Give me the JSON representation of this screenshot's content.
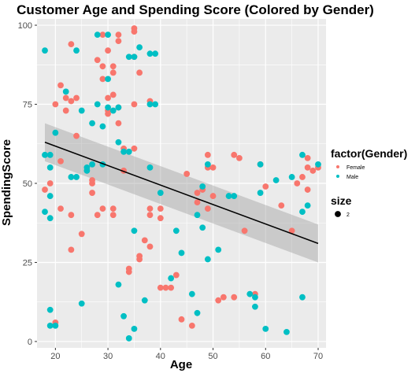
{
  "chart_data": {
    "type": "scatter",
    "title": "Customer Age and Spending Score (Colored by Gender)",
    "xlabel": "Age",
    "ylabel": "SpendingScore",
    "xlim": [
      16.5,
      71.5
    ],
    "ylim": [
      -2,
      102
    ],
    "xticks": [
      20,
      30,
      40,
      50,
      60,
      70
    ],
    "yticks": [
      0,
      25,
      50,
      75,
      100
    ],
    "grid": true,
    "legend_position": "right",
    "colors": {
      "panel": "#ebebeb",
      "grid": "#ffffff",
      "Female": "#f8766d",
      "Male": "#00bfc4",
      "ribbon": "#999999",
      "trend": "#000000"
    },
    "legend": {
      "color_title": "factor(Gender)",
      "entries": [
        {
          "label": "Female",
          "color": "#f8766d"
        },
        {
          "label": "Male",
          "color": "#00bfc4"
        }
      ],
      "size_title": "size",
      "size_entries": [
        {
          "label": "2"
        }
      ]
    },
    "trend": {
      "method": "linear",
      "x": [
        18,
        70
      ],
      "y": [
        63,
        31
      ],
      "ci_lower": [
        57,
        25
      ],
      "ci_upper": [
        69,
        37
      ]
    },
    "series": [
      {
        "name": "Female",
        "color": "#f8766d",
        "points": [
          [
            18,
            48
          ],
          [
            19,
            50
          ],
          [
            20,
            75
          ],
          [
            20,
            6
          ],
          [
            21,
            81
          ],
          [
            21,
            42
          ],
          [
            21,
            57
          ],
          [
            22,
            77
          ],
          [
            22,
            73
          ],
          [
            23,
            94
          ],
          [
            23,
            76
          ],
          [
            23,
            40
          ],
          [
            23,
            29
          ],
          [
            24,
            77
          ],
          [
            24,
            65
          ],
          [
            25,
            34
          ],
          [
            27,
            51
          ],
          [
            27,
            50
          ],
          [
            27,
            47
          ],
          [
            28,
            89
          ],
          [
            28,
            40
          ],
          [
            29,
            87
          ],
          [
            29,
            97
          ],
          [
            29,
            83
          ],
          [
            29,
            42
          ],
          [
            30,
            92
          ],
          [
            30,
            77
          ],
          [
            30,
            72
          ],
          [
            30,
            73
          ],
          [
            31,
            87
          ],
          [
            31,
            85
          ],
          [
            31,
            78
          ],
          [
            31,
            42
          ],
          [
            31,
            40
          ],
          [
            32,
            95
          ],
          [
            32,
            97
          ],
          [
            32,
            74
          ],
          [
            32,
            69
          ],
          [
            33,
            61
          ],
          [
            33,
            54
          ],
          [
            34,
            22
          ],
          [
            34,
            23
          ],
          [
            35,
            99
          ],
          [
            35,
            98
          ],
          [
            35,
            90
          ],
          [
            35,
            75
          ],
          [
            35,
            61
          ],
          [
            36,
            85
          ],
          [
            36,
            27
          ],
          [
            36,
            26
          ],
          [
            37,
            32
          ],
          [
            38,
            76
          ],
          [
            38,
            42
          ],
          [
            38,
            40
          ],
          [
            38,
            30
          ],
          [
            40,
            42
          ],
          [
            40,
            39
          ],
          [
            40,
            17
          ],
          [
            41,
            17
          ],
          [
            42,
            17
          ],
          [
            43,
            21
          ],
          [
            44,
            7
          ],
          [
            45,
            53
          ],
          [
            46,
            5
          ],
          [
            47,
            44
          ],
          [
            47,
            47
          ],
          [
            48,
            48
          ],
          [
            49,
            59
          ],
          [
            49,
            55
          ],
          [
            49,
            42
          ],
          [
            50,
            46
          ],
          [
            50,
            55
          ],
          [
            51,
            13
          ],
          [
            52,
            14
          ],
          [
            54,
            59
          ],
          [
            54,
            14
          ],
          [
            55,
            58
          ],
          [
            56,
            35
          ],
          [
            58,
            15
          ],
          [
            59,
            56
          ],
          [
            60,
            49
          ],
          [
            63,
            43
          ],
          [
            65,
            35
          ],
          [
            66,
            50
          ],
          [
            67,
            52
          ],
          [
            68,
            58
          ],
          [
            68,
            55
          ],
          [
            68,
            48
          ],
          [
            69,
            54
          ],
          [
            70,
            55
          ]
        ]
      },
      {
        "name": "Male",
        "color": "#00bfc4",
        "points": [
          [
            18,
            92
          ],
          [
            18,
            59
          ],
          [
            18,
            41
          ],
          [
            19,
            59
          ],
          [
            19,
            55
          ],
          [
            19,
            46
          ],
          [
            19,
            39
          ],
          [
            19,
            10
          ],
          [
            19,
            5
          ],
          [
            20,
            66
          ],
          [
            20,
            5
          ],
          [
            22,
            79
          ],
          [
            23,
            52
          ],
          [
            24,
            92
          ],
          [
            24,
            52
          ],
          [
            25,
            73
          ],
          [
            25,
            12
          ],
          [
            26,
            54
          ],
          [
            26,
            55
          ],
          [
            27,
            69
          ],
          [
            27,
            56
          ],
          [
            28,
            97
          ],
          [
            28,
            75
          ],
          [
            29,
            68
          ],
          [
            29,
            56
          ],
          [
            30,
            97
          ],
          [
            30,
            83
          ],
          [
            30,
            74
          ],
          [
            31,
            73
          ],
          [
            32,
            74
          ],
          [
            32,
            63
          ],
          [
            32,
            18
          ],
          [
            33,
            8
          ],
          [
            33,
            60
          ],
          [
            34,
            90
          ],
          [
            34,
            60
          ],
          [
            34,
            1
          ],
          [
            35,
            90
          ],
          [
            35,
            35
          ],
          [
            35,
            4
          ],
          [
            36,
            93
          ],
          [
            37,
            13
          ],
          [
            38,
            91
          ],
          [
            38,
            55
          ],
          [
            38,
            75
          ],
          [
            39,
            75
          ],
          [
            39,
            91
          ],
          [
            40,
            47
          ],
          [
            42,
            20
          ],
          [
            43,
            35
          ],
          [
            44,
            28
          ],
          [
            46,
            15
          ],
          [
            47,
            40
          ],
          [
            47,
            9
          ],
          [
            48,
            49
          ],
          [
            48,
            36
          ],
          [
            49,
            56
          ],
          [
            49,
            26
          ],
          [
            51,
            29
          ],
          [
            53,
            46
          ],
          [
            54,
            46
          ],
          [
            57,
            15
          ],
          [
            58,
            14
          ],
          [
            58,
            11
          ],
          [
            59,
            56
          ],
          [
            59,
            47
          ],
          [
            60,
            4
          ],
          [
            62,
            51
          ],
          [
            64,
            3
          ],
          [
            65,
            52
          ],
          [
            67,
            59
          ],
          [
            67,
            41
          ],
          [
            67,
            14
          ],
          [
            68,
            43
          ],
          [
            70,
            56
          ]
        ]
      }
    ]
  }
}
